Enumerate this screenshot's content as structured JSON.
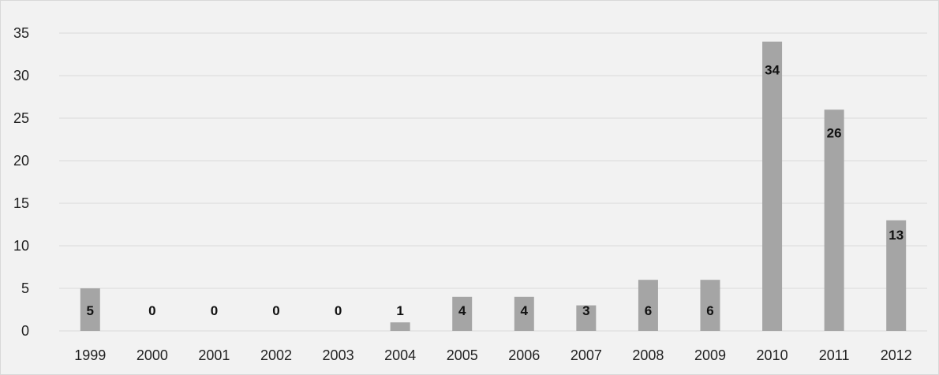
{
  "chart_data": {
    "type": "bar",
    "title": "",
    "xlabel": "",
    "ylabel": "",
    "categories": [
      "1999",
      "2000",
      "2001",
      "2002",
      "2003",
      "2004",
      "2005",
      "2006",
      "2007",
      "2008",
      "2009",
      "2010",
      "2011",
      "2012"
    ],
    "values": [
      5,
      0,
      0,
      0,
      0,
      1,
      4,
      4,
      3,
      6,
      6,
      34,
      26,
      13
    ],
    "ylim": [
      0,
      35
    ],
    "yticks": [
      "0",
      "5",
      "10",
      "15",
      "20",
      "25",
      "30",
      "35"
    ],
    "grid": true,
    "legend": "none",
    "data_labels": true
  },
  "colors": {
    "bar": "#a5a5a5",
    "plot_background": "#f2f2f2",
    "gridline": "#d9d9d9",
    "border": "#d9d9d9"
  }
}
